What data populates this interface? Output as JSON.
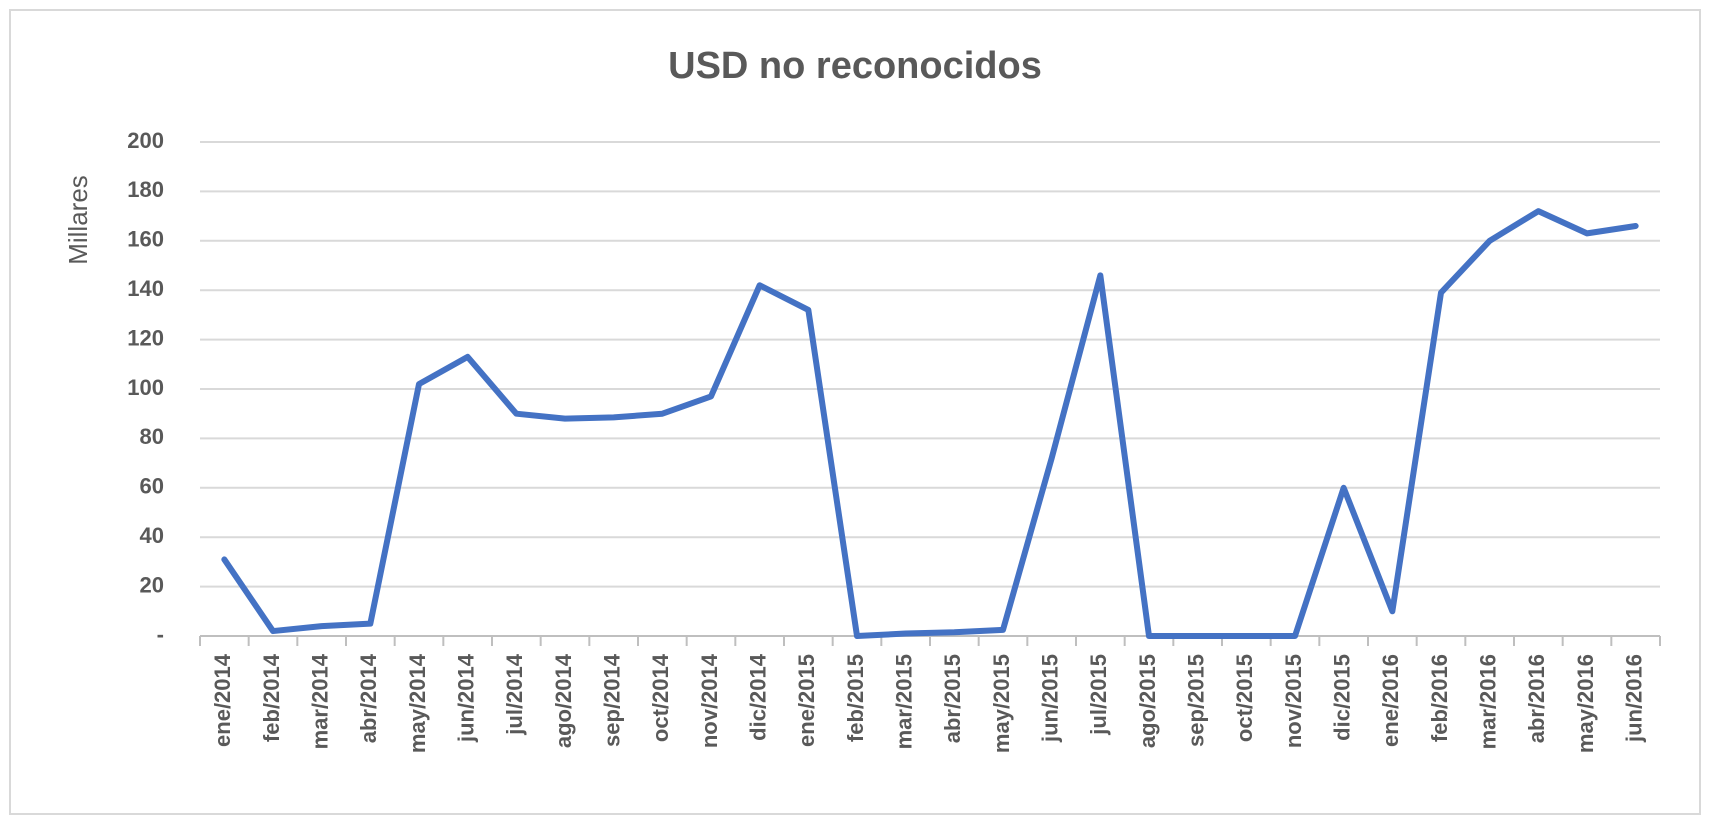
{
  "chart_data": {
    "type": "line",
    "title": "USD no reconocidos",
    "y_label": "Millares",
    "categories": [
      "ene/2014",
      "feb/2014",
      "mar/2014",
      "abr/2014",
      "may/2014",
      "jun/2014",
      "jul/2014",
      "ago/2014",
      "sep/2014",
      "oct/2014",
      "nov/2014",
      "dic/2014",
      "ene/2015",
      "feb/2015",
      "mar/2015",
      "abr/2015",
      "may/2015",
      "jun/2015",
      "jul/2015",
      "ago/2015",
      "sep/2015",
      "oct/2015",
      "nov/2015",
      "dic/2015",
      "ene/2016",
      "feb/2016",
      "mar/2016",
      "abr/2016",
      "may/2016",
      "jun/2016"
    ],
    "values": [
      31,
      2,
      4,
      5,
      102,
      113,
      90,
      88,
      88.5,
      90,
      97,
      142,
      132,
      0,
      1,
      1.5,
      2.5,
      72,
      146,
      0,
      0,
      0,
      0,
      60,
      10,
      139,
      160,
      172,
      163,
      166
    ],
    "color": "#4472c4",
    "ylim": [
      0,
      200
    ],
    "yticks": [
      {
        "value": 0,
        "label": "-"
      },
      20,
      40,
      60,
      80,
      100,
      120,
      140,
      160,
      180,
      200
    ],
    "grid": true
  }
}
